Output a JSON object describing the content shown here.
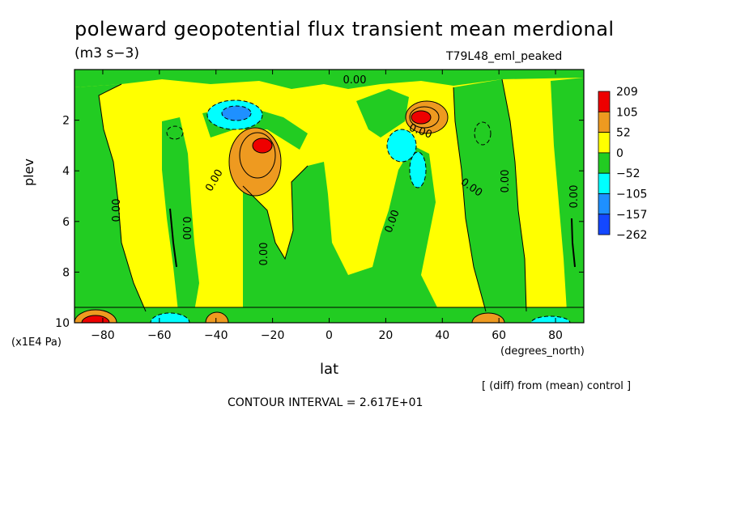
{
  "chart_data": {
    "type": "heatmap",
    "title": "poleward geopotential flux transient mean merdional",
    "units": "(m3 s−3)",
    "experiment": "T79L48_eml_peaked",
    "xlabel": "lat",
    "xunit": "(degrees_north)",
    "ylabel": "plev",
    "yunit": "(x1E4 Pa)",
    "xlim": [
      -90,
      90
    ],
    "ylim": [
      0,
      10
    ],
    "y_inverted": true,
    "x_ticks": [
      -80,
      -60,
      -40,
      -20,
      0,
      20,
      40,
      60,
      80
    ],
    "y_ticks": [
      2,
      4,
      6,
      8,
      10
    ],
    "contour_interval": "CONTOUR INTERVAL = 2.617E+01",
    "note": "[ (diff) from (mean) control ]",
    "contour_labels": [
      "0.00"
    ],
    "colorbar": {
      "labels": [
        "209",
        "105",
        "52",
        "0",
        "−52",
        "−105",
        "−157",
        "−262"
      ],
      "colors": [
        "#ee0000",
        "#ee9a20",
        "#ffff00",
        "#22cc22",
        "#00ffff",
        "#1e90ff",
        "#1448ff"
      ]
    },
    "features": [
      {
        "lat": -80,
        "plev": 9.9,
        "value": 209
      },
      {
        "lat": -55,
        "plev": 9.9,
        "value": -105
      },
      {
        "lat": -43,
        "plev": 9.9,
        "value": 105
      },
      {
        "lat": -33,
        "plev": 2.0,
        "value": -157
      },
      {
        "lat": -25,
        "plev": 3.2,
        "value": 209
      },
      {
        "lat": -30,
        "plev": 4.0,
        "value": 105
      },
      {
        "lat": 32,
        "plev": 2.0,
        "value": 209
      },
      {
        "lat": 28,
        "plev": 3.0,
        "value": -105
      },
      {
        "lat": 55,
        "plev": 9.8,
        "value": 105
      },
      {
        "lat": 72,
        "plev": 9.9,
        "value": -105
      }
    ]
  }
}
